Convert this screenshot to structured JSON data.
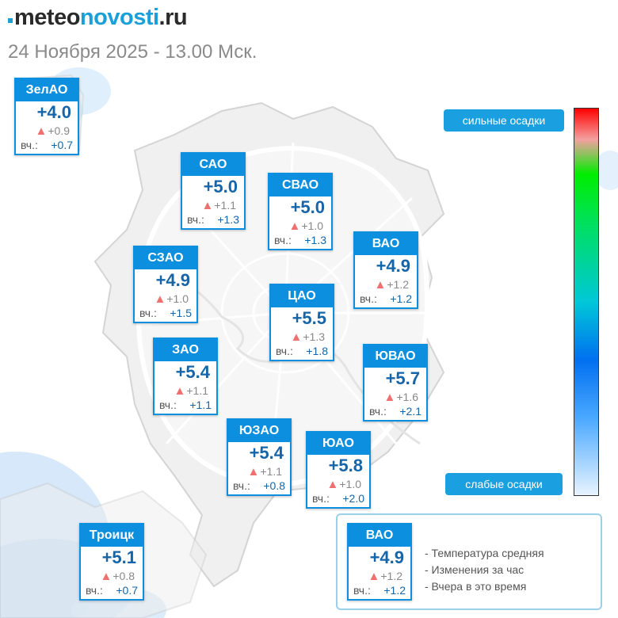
{
  "header": {
    "logo_part1": "meteo",
    "logo_part2": "novosti",
    "logo_part3": ".ru",
    "date": "24 Ноября 2025 - 13.00 Мск."
  },
  "yesterday_prefix": "вч.:",
  "change_marker": "▲",
  "districts": [
    {
      "name": "ЗелАО",
      "temp": "+4.0",
      "change": "+0.9",
      "yesterday": "+0.7"
    },
    {
      "name": "САО",
      "temp": "+5.0",
      "change": "+1.1",
      "yesterday": "+1.3"
    },
    {
      "name": "СВАО",
      "temp": "+5.0",
      "change": "+1.0",
      "yesterday": "+1.3"
    },
    {
      "name": "ВАО",
      "temp": "+4.9",
      "change": "+1.2",
      "yesterday": "+1.2"
    },
    {
      "name": "СЗАО",
      "temp": "+4.9",
      "change": "+1.0",
      "yesterday": "+1.5"
    },
    {
      "name": "ЦАО",
      "temp": "+5.5",
      "change": "+1.3",
      "yesterday": "+1.8"
    },
    {
      "name": "ЗАО",
      "temp": "+5.4",
      "change": "+1.1",
      "yesterday": "+1.1"
    },
    {
      "name": "ЮВАО",
      "temp": "+5.7",
      "change": "+1.6",
      "yesterday": "+2.1"
    },
    {
      "name": "ЮЗАО",
      "temp": "+5.4",
      "change": "+1.1",
      "yesterday": "+0.8"
    },
    {
      "name": "ЮАО",
      "temp": "+5.8",
      "change": "+1.0",
      "yesterday": "+2.0"
    },
    {
      "name": "Троицк",
      "temp": "+5.1",
      "change": "+0.8",
      "yesterday": "+0.7"
    }
  ],
  "precip_scale": {
    "top_label": "сильные осадки",
    "bottom_label": "слабые осадки"
  },
  "legend": {
    "example": {
      "name": "ВАО",
      "temp": "+4.9",
      "change": "+1.2",
      "yesterday": "+1.2"
    },
    "items": [
      "- Температура средняя",
      "- Изменения за час",
      "- Вчера в это время"
    ]
  },
  "colors": {
    "accent": "#0d8fe0",
    "temperature": "#1565a8",
    "rise_marker": "#f07070"
  }
}
